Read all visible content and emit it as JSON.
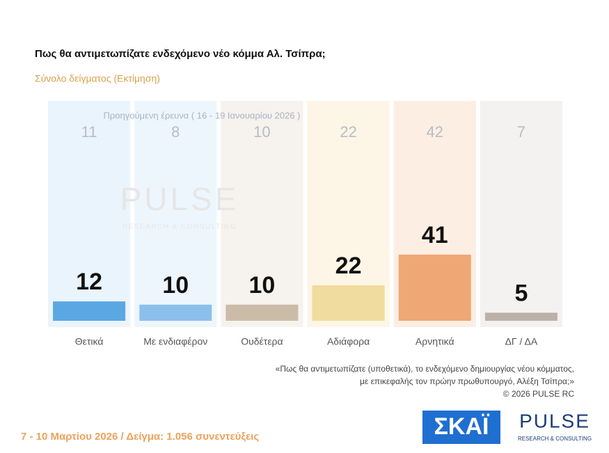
{
  "chart_data": {
    "type": "bar",
    "title": "Πως θα αντιμετωπίζατε ενδεχόμενο νέο κόμμα Αλ. Τσίπρα;",
    "subtitle": "Σύνολο δείγματος  (Εκτίμηση)",
    "categories": [
      "Θετικά",
      "Με ενδιαφέρον",
      "Ουδέτερα",
      "Αδιάφορα",
      "Αρνητικά",
      "ΔΓ / ΔΑ"
    ],
    "values": [
      12,
      10,
      10,
      22,
      41,
      5
    ],
    "colors": [
      "#5aa7e4",
      "#8cc0ec",
      "#cbbca8",
      "#f0dc9e",
      "#efa775",
      "#bcb1a8"
    ],
    "panel_colors": [
      "#eaf4fc",
      "#eef6fd",
      "#f6f2ee",
      "#fdf6e6",
      "#fdeee3",
      "#f4f2f0"
    ],
    "ylim": [
      0,
      100
    ],
    "previous": {
      "label": "Προηγούμενη έρευνα ( 16 - 19 Ιανουαρίου 2026 )",
      "values": [
        11,
        8,
        10,
        22,
        42,
        7
      ]
    },
    "watermark": {
      "name": "PULSE",
      "tagline": "RESEARCH & CONSULTING"
    },
    "note": [
      "«Πως θα αντιμετωπίζατε (υποθετικά), το ενδεχόμενο δημιουργίας νέου κόμματος,",
      "με επικεφαλής τον πρώην πρωθυπουργό, Αλέξη Τσίπρα;»"
    ],
    "copyright": "©  2026  PULSE RC",
    "footer": "7 - 10  Μαρτίου 2026  /  Δείγμα:  1.056 συνεντεύξεις",
    "logos": {
      "skai": "ΣΚΑΪ",
      "pulse": "PULSE",
      "pulse_tagline": "RESEARCH & CONSULTING"
    }
  }
}
